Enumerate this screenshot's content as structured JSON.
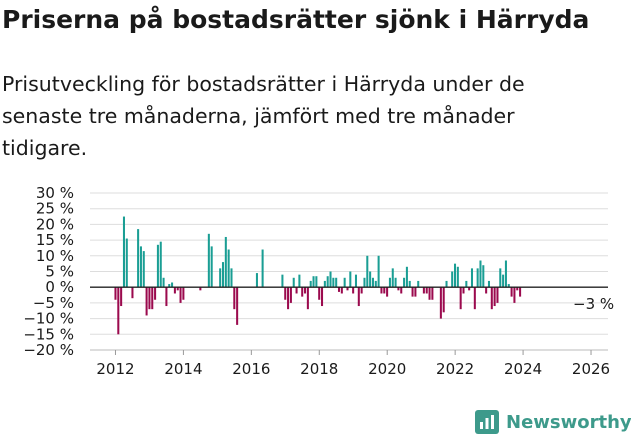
{
  "title": "Priserna på bostadsrätter sjönk i Härryda",
  "subtitle": "Prisutveckling för bostadsrätter i Härryda under de senaste tre månaderna, jämfört med tre månader tidigare.",
  "logo": {
    "text": "Newsworthy",
    "icon": "bar-chart-logo-icon"
  },
  "colors": {
    "positive": "#1a9e94",
    "negative": "#9b0a4e",
    "grid": "#dddddd",
    "zero": "#222222"
  },
  "chart_data": {
    "type": "bar",
    "title": "Priserna på bostadsrätter sjönk i Härryda",
    "xlabel": "",
    "ylabel": "",
    "unit": "%",
    "ylim": [
      -20,
      30
    ],
    "xlim": [
      2011.25,
      2026.5
    ],
    "y_ticks": [
      -20,
      -15,
      -10,
      -5,
      0,
      5,
      10,
      15,
      20,
      25,
      30
    ],
    "y_tick_labels": [
      "−20 %",
      "−15 %",
      "−10 %",
      "−5 %",
      "0 %",
      "5 %",
      "10 %",
      "15 %",
      "20 %",
      "25 %",
      "30 %"
    ],
    "x_ticks": [
      2012,
      2014,
      2016,
      2018,
      2020,
      2022,
      2024,
      2026
    ],
    "x_tick_labels": [
      "2012",
      "2014",
      "2016",
      "2018",
      "2020",
      "2022",
      "2024",
      "2026"
    ],
    "annotation": {
      "text": "−3 %",
      "x": 2026.0,
      "y": -3
    },
    "x_start": 2012.0,
    "x_step": 0.0833,
    "values": [
      -4,
      -15,
      -6,
      22.5,
      15.5,
      0,
      -3.5,
      0,
      18.5,
      13,
      11.5,
      -9,
      -7,
      -7,
      -4,
      13.5,
      14.5,
      3,
      -6,
      1,
      1.5,
      -2,
      -1,
      -5,
      -4,
      0,
      0,
      0,
      0,
      0,
      -1,
      0,
      0,
      17,
      13,
      0,
      0,
      6,
      8,
      16,
      12,
      6,
      -7,
      -12,
      0,
      0,
      0,
      0,
      0,
      0,
      4.5,
      0,
      12,
      0,
      0,
      0,
      0,
      0,
      0,
      4,
      -4,
      -7,
      -5,
      3,
      -2,
      4,
      -3,
      -2,
      -7,
      2,
      3.5,
      3.5,
      -4,
      -6,
      2,
      3.5,
      5,
      3,
      3,
      -1.5,
      -2,
      3,
      -1,
      5,
      -2,
      4,
      -6,
      -2,
      3,
      10,
      5,
      3,
      2,
      10,
      -2,
      -2,
      -3,
      3,
      6,
      3,
      -1,
      -2,
      3,
      6.5,
      2,
      -3,
      -3,
      2,
      0,
      -2,
      -2,
      -4,
      -4,
      0,
      0,
      -10,
      -8,
      2,
      0,
      5,
      7.5,
      6.5,
      -7,
      -2,
      2,
      -1,
      6,
      -7,
      6,
      8.5,
      7,
      -2,
      2,
      -7,
      -6,
      -5,
      6,
      4,
      8.5,
      1,
      -3,
      -5,
      -1,
      -3
    ]
  }
}
